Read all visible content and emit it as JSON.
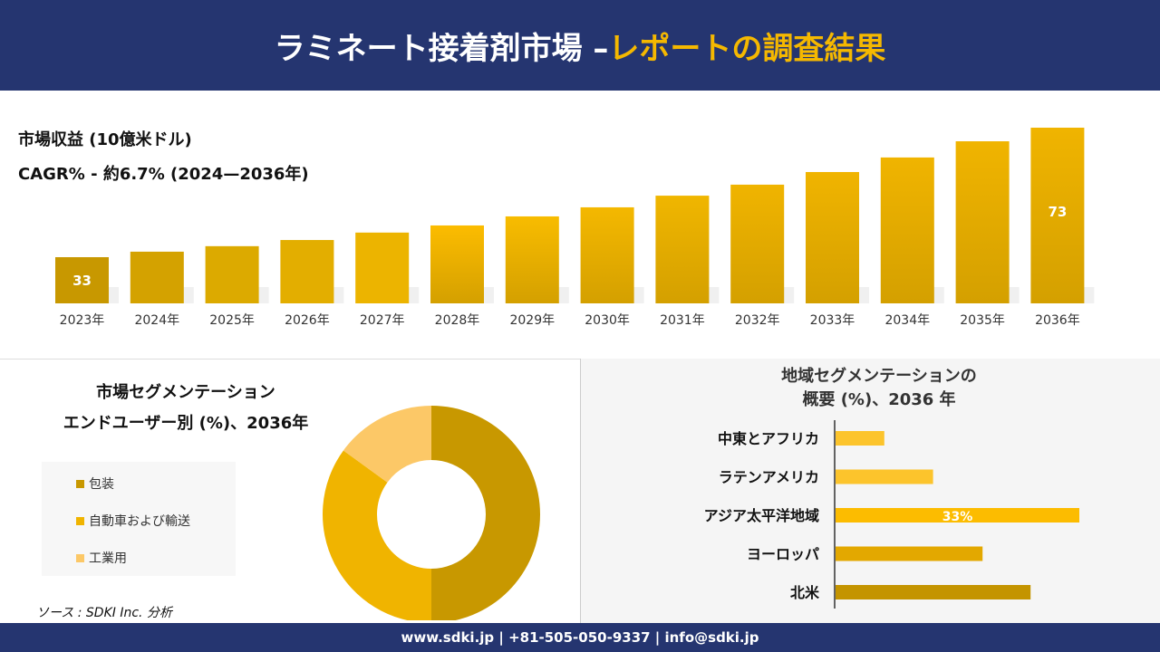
{
  "header": {
    "title_main": "ラミネート接着剤市場 –",
    "title_accent": "レポートの調査結果"
  },
  "colors": {
    "header_bg": "#253570",
    "accent": "#f5b800"
  },
  "chart_data": [
    {
      "type": "bar",
      "title": "市場収益 (10億米ドル)",
      "subtitle": "CAGR% - 約6.7% (2024—2036年)",
      "categories": [
        "2023年",
        "2024年",
        "2025年",
        "2026年",
        "2027年",
        "2028年",
        "2029年",
        "2030年",
        "2031年",
        "2032年",
        "2033年",
        "2034年",
        "2035年",
        "2036年"
      ],
      "values": [
        33,
        34.7,
        36.4,
        38.3,
        40.6,
        42.8,
        45.6,
        48.4,
        52,
        55.4,
        59.3,
        63.8,
        68.8,
        73
      ],
      "data_labels": {
        "0": "33",
        "13": "73"
      },
      "grid": false
    },
    {
      "type": "pie",
      "title_line1": "市場セグメンテーション",
      "title_line2": "エンドユーザー別 (%)、2036年",
      "labels": [
        "包装",
        "自動車および輸送",
        "工業用"
      ],
      "values": [
        50,
        35,
        15
      ],
      "colors": [
        "#c89800",
        "#f0b400",
        "#fcc867"
      ],
      "hole": true,
      "legend": "left"
    },
    {
      "type": "bar",
      "orientation": "horizontal",
      "title_line1": "地域セグメンテーションの",
      "title_line2": "概要 (%)、2036 年",
      "categories": [
        "中東とアフリカ",
        "ラテンアメリカ",
        "アジア太平洋地域",
        "ヨーロッパ",
        "北米"
      ],
      "values": [
        6.6,
        13.2,
        33,
        19.9,
        26.4
      ],
      "data_labels": {
        "2": "33%"
      },
      "colors": [
        "#fcc42c",
        "#fcc42c",
        "#fcbc00",
        "#e3a800",
        "#c49400"
      ]
    }
  ],
  "source": "ソース : SDKI Inc. 分析",
  "footer": "www.sdki.jp | +81-505-050-9337 | info@sdki.jp"
}
